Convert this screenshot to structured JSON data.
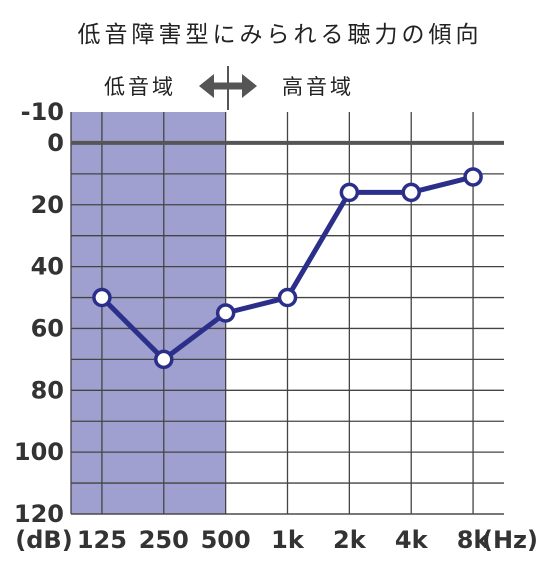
{
  "chart_data": {
    "type": "line",
    "title": "低音障害型にみられる聴力の傾向",
    "low_band_label": "低音域",
    "high_band_label": "高音域",
    "x_categories": [
      "125",
      "250",
      "500",
      "1k",
      "2k",
      "4k",
      "8k"
    ],
    "x_unit": "(Hz)",
    "y_unit": "(dB)",
    "y_ticks": [
      -10,
      0,
      20,
      40,
      60,
      80,
      100,
      120
    ],
    "ylim": [
      -10,
      120
    ],
    "y_inverted": true,
    "grid": true,
    "shaded_region": {
      "from": "125",
      "to": "500",
      "label": "低音域"
    },
    "series": [
      {
        "values": [
          50,
          70,
          55,
          50,
          16,
          16,
          11
        ]
      }
    ],
    "colors": {
      "line": "#2b2f8a",
      "shade": "#9fa0cf",
      "grid": "#444444",
      "zero_line": "#555555",
      "arrow": "#555555"
    }
  }
}
